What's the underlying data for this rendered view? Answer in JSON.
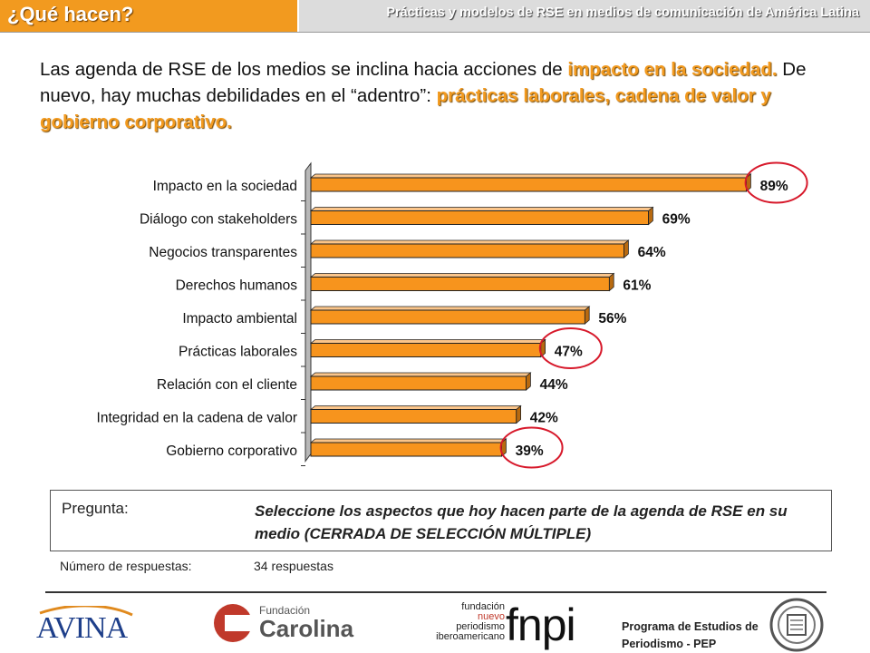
{
  "header": {
    "section_title": "¿Qué hacen?",
    "subtitle": "Prácticas y modelos de RSE en medios de comunicación de América Latina"
  },
  "headline": {
    "p1": "Las agenda de RSE de los medios se inclina hacia acciones de ",
    "h1": "impacto en la sociedad.",
    "p2": " De nuevo, hay muchas debilidades en el “adentro”: ",
    "h2": "prácticas laborales, cadena de valor y gobierno corporativo."
  },
  "chart_data": {
    "type": "bar",
    "orientation": "horizontal",
    "categories": [
      "Impacto en la sociedad",
      "Diálogo con stakeholders",
      "Negocios transparentes",
      "Derechos humanos",
      "Impacto ambiental",
      "Prácticas laborales",
      "Relación con el cliente",
      "Integridad en la cadena de valor",
      "Gobierno corporativo"
    ],
    "values": [
      89,
      69,
      64,
      61,
      56,
      47,
      44,
      42,
      39
    ],
    "value_labels": [
      "89%",
      "69%",
      "64%",
      "61%",
      "56%",
      "47%",
      "44%",
      "42%",
      "39%"
    ],
    "highlighted": [
      "Impacto en la sociedad",
      "Prácticas laborales",
      "Gobierno corporativo"
    ],
    "xlim": [
      0,
      100
    ],
    "bar_color": "#f7941d",
    "highlight_color": "#d7192b"
  },
  "question": {
    "label": "Pregunta:",
    "text_a": "Seleccione los aspectos que hoy hacen parte de la agenda de RSE en su medio (",
    "text_b": "CERRADA DE SELECCIÓN MÚLTIPLE",
    "text_c": ")"
  },
  "responses": {
    "label": "Número de respuestas:",
    "value": "34 respuestas"
  },
  "footer": {
    "logo_avina": "AVINA",
    "logo_carolina_small": "Fundación",
    "logo_carolina_big": "Carolina",
    "logo_fnpi_line1": "fundación",
    "logo_fnpi_line2": "nuevo",
    "logo_fnpi_line3": "periodismo",
    "logo_fnpi_line4": "iberoamericano",
    "logo_fnpi_big": "fnpi",
    "pep_line1": "Programa de Estudios de",
    "pep_line2": "Periodismo - PEP"
  }
}
